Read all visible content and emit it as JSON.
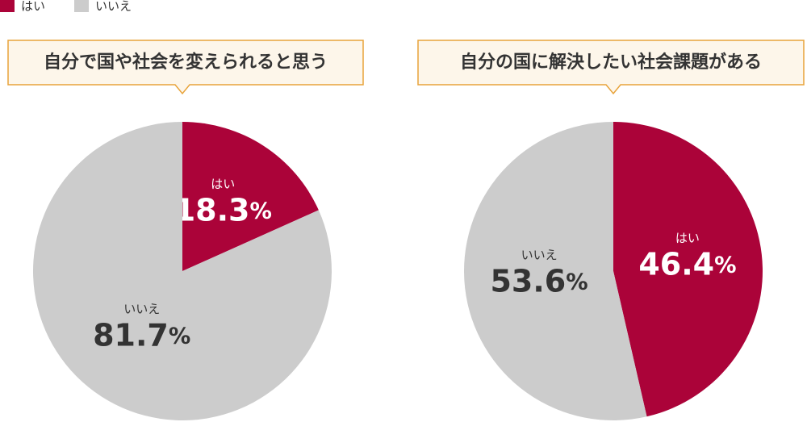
{
  "chart_data": [
    {
      "type": "pie",
      "title": "自分で国や社会を変えられると思う",
      "categories": [
        "はい",
        "いいえ"
      ],
      "values": [
        18.3,
        81.7
      ],
      "value_labels": [
        "18.3%",
        "81.7%"
      ],
      "colors": [
        "#ab0339",
        "#cccccc"
      ]
    },
    {
      "type": "pie",
      "title": "自分の国に解決したい社会課題がある",
      "categories": [
        "はい",
        "いいえ"
      ],
      "values": [
        46.4,
        53.6
      ],
      "value_labels": [
        "46.4%",
        "53.6%"
      ],
      "colors": [
        "#ab0339",
        "#cccccc"
      ]
    }
  ]
}
